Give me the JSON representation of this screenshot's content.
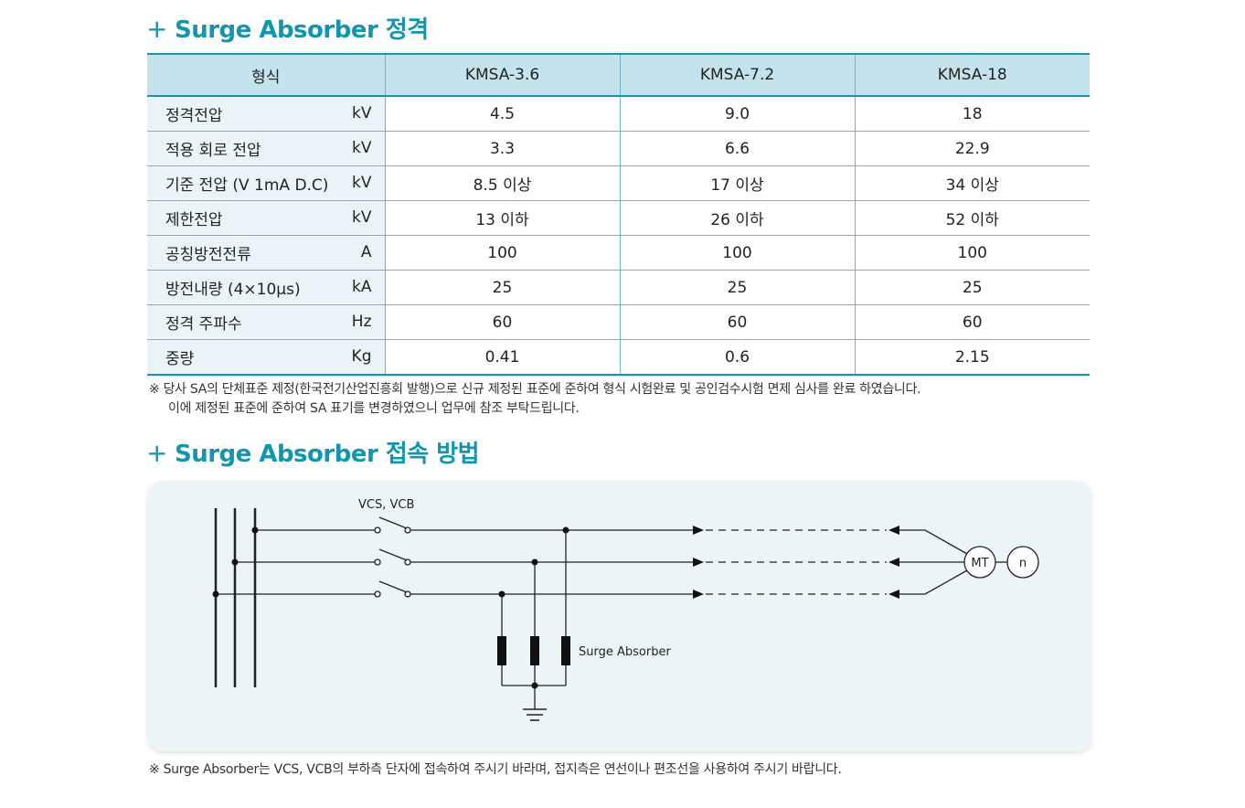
{
  "spec_section": {
    "plus": "+",
    "title": "Surge Absorber 정격"
  },
  "table": {
    "header": [
      "형식",
      "KMSA-3.6",
      "KMSA-7.2",
      "KMSA-18"
    ],
    "rows": [
      {
        "label": "정격전압",
        "unit": "kV",
        "values": [
          "4.5",
          "9.0",
          "18"
        ]
      },
      {
        "label": "적용 회로 전압",
        "unit": "kV",
        "values": [
          "3.3",
          "6.6",
          "22.9"
        ]
      },
      {
        "label": "기준 전압 (V 1mA D.C)",
        "unit": "kV",
        "values": [
          "8.5 이상",
          "17 이상",
          "34 이상"
        ]
      },
      {
        "label": "제한전압",
        "unit": "kV",
        "values": [
          "13 이하",
          "26 이하",
          "52 이하"
        ]
      },
      {
        "label": "공칭방전전류",
        "unit": "A",
        "values": [
          "100",
          "100",
          "100"
        ]
      },
      {
        "label": "방전내량 (4×10μs)",
        "unit": "kA",
        "values": [
          "25",
          "25",
          "25"
        ]
      },
      {
        "label": "정격 주파수",
        "unit": "Hz",
        "values": [
          "60",
          "60",
          "60"
        ]
      },
      {
        "label": "중량",
        "unit": "Kg",
        "values": [
          "0.41",
          "0.6",
          "2.15"
        ]
      }
    ]
  },
  "note1": {
    "line1": "※ 당사 SA의 단체표준 제정(한국전기산업진흥회 발행)으로 신규 제정된 표준에 준하여 형식 시험완료 및 공인검수시험 면제 심사를 완료 하였습니다.",
    "line2": "이에 제정된 표준에 준하여 SA 표기를 변경하였으니 업무에 참조 부탁드립니다."
  },
  "connection_section": {
    "plus": "+",
    "title": "Surge Absorber 접속 방법"
  },
  "diagram": {
    "switch_label": "VCS, VCB",
    "sa_label": "Surge Absorber",
    "motor_label": "MT",
    "n_label": "n",
    "colors": {
      "line": "#222222",
      "box": "#ebf5f8"
    }
  },
  "note2": "※ Surge Absorber는 VCS, VCB의 부하측 단자에 접속하여 주시기 바라며, 접지측은 연선이나 편조선을 사용하여 주시기 바랍니다."
}
